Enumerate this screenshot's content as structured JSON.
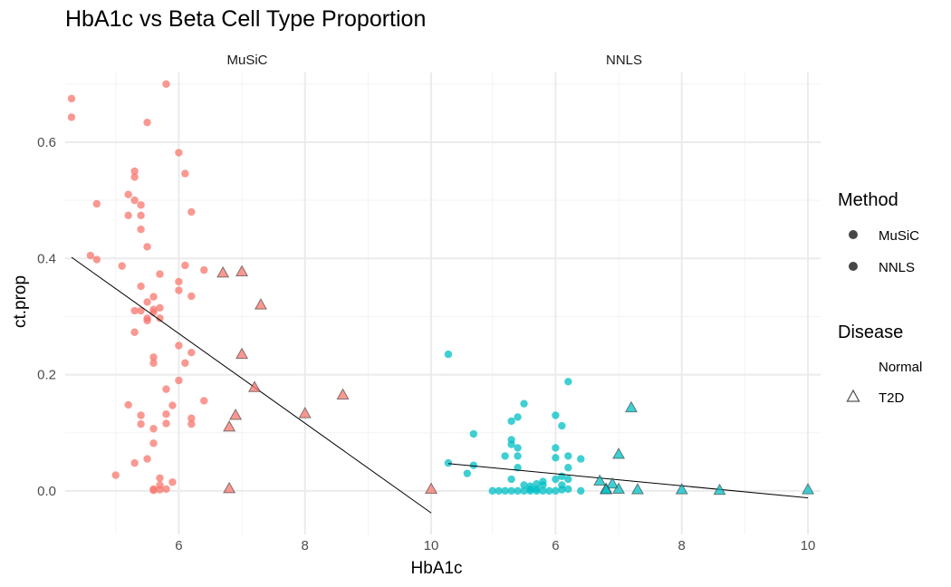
{
  "chart_data": {
    "type": "scatter",
    "title": "HbA1c vs Beta Cell Type Proportion",
    "xlabel": "HbA1c",
    "ylabel": "ct.prop",
    "xlim": [
      4.2,
      10.2
    ],
    "ylim": [
      -0.075,
      0.72
    ],
    "x_ticks": [
      "6",
      "8",
      "10"
    ],
    "y_ticks": [
      "0.0",
      "0.2",
      "0.4",
      "0.6"
    ],
    "grid": true,
    "colors": {
      "MuSiC": "#F8766D",
      "NNLS": "#00BFC4",
      "grid_major": "#ebebeb",
      "grid_minor": "#f3f3f3"
    },
    "legend": {
      "method_title": "Method",
      "method_items": [
        "MuSiC",
        "NNLS"
      ],
      "disease_title": "Disease",
      "disease_items": [
        "Normal",
        "T2D"
      ],
      "position": "right"
    },
    "panels": [
      {
        "name": "MuSiC",
        "fit_line": [
          [
            4.3,
            0.402
          ],
          [
            10.0,
            -0.038
          ]
        ],
        "normal": [
          [
            4.3,
            0.675
          ],
          [
            4.3,
            0.643
          ],
          [
            4.6,
            0.405
          ],
          [
            4.7,
            0.494
          ],
          [
            4.7,
            0.398
          ],
          [
            5.0,
            0.027
          ],
          [
            5.1,
            0.387
          ],
          [
            5.2,
            0.51
          ],
          [
            5.2,
            0.474
          ],
          [
            5.2,
            0.148
          ],
          [
            5.3,
            0.55
          ],
          [
            5.3,
            0.54
          ],
          [
            5.3,
            0.5
          ],
          [
            5.3,
            0.31
          ],
          [
            5.3,
            0.273
          ],
          [
            5.3,
            0.048
          ],
          [
            5.4,
            0.492
          ],
          [
            5.4,
            0.474
          ],
          [
            5.4,
            0.45
          ],
          [
            5.4,
            0.352
          ],
          [
            5.4,
            0.31
          ],
          [
            5.4,
            0.13
          ],
          [
            5.4,
            0.115
          ],
          [
            5.5,
            0.634
          ],
          [
            5.5,
            0.42
          ],
          [
            5.5,
            0.325
          ],
          [
            5.5,
            0.297
          ],
          [
            5.5,
            0.293
          ],
          [
            5.5,
            0.055
          ],
          [
            5.6,
            0.334
          ],
          [
            5.6,
            0.312
          ],
          [
            5.6,
            0.307
          ],
          [
            5.6,
            0.23
          ],
          [
            5.6,
            0.22
          ],
          [
            5.6,
            0.107
          ],
          [
            5.6,
            0.082
          ],
          [
            5.6,
            0.003
          ],
          [
            5.6,
            0.001
          ],
          [
            5.7,
            0.373
          ],
          [
            5.7,
            0.315
          ],
          [
            5.7,
            0.297
          ],
          [
            5.7,
            0.002
          ],
          [
            5.7,
            0.022
          ],
          [
            5.7,
            0.01
          ],
          [
            5.8,
            0.7
          ],
          [
            5.8,
            0.175
          ],
          [
            5.8,
            0.132
          ],
          [
            5.8,
            0.116
          ],
          [
            5.8,
            0.003
          ],
          [
            5.9,
            0.147
          ],
          [
            5.9,
            0.015
          ],
          [
            6.0,
            0.582
          ],
          [
            6.0,
            0.36
          ],
          [
            6.0,
            0.345
          ],
          [
            6.0,
            0.25
          ],
          [
            6.0,
            0.19
          ],
          [
            6.1,
            0.546
          ],
          [
            6.1,
            0.388
          ],
          [
            6.1,
            0.22
          ],
          [
            6.2,
            0.48
          ],
          [
            6.2,
            0.335
          ],
          [
            6.2,
            0.238
          ],
          [
            6.2,
            0.125
          ],
          [
            6.2,
            0.115
          ],
          [
            6.4,
            0.38
          ],
          [
            6.4,
            0.155
          ]
        ],
        "t2d": [
          [
            6.7,
            0.375
          ],
          [
            7.0,
            0.377
          ],
          [
            7.3,
            0.32
          ],
          [
            7.0,
            0.235
          ],
          [
            7.2,
            0.178
          ],
          [
            6.9,
            0.13
          ],
          [
            6.8,
            0.11
          ],
          [
            8.0,
            0.133
          ],
          [
            8.6,
            0.165
          ],
          [
            6.8,
            0.004
          ],
          [
            10.0,
            0.003
          ]
        ]
      },
      {
        "name": "NNLS",
        "fit_line": [
          [
            4.3,
            0.047
          ],
          [
            10.0,
            -0.012
          ]
        ],
        "normal": [
          [
            4.3,
            0.235
          ],
          [
            4.3,
            0.048
          ],
          [
            4.6,
            0.03
          ],
          [
            4.7,
            0.098
          ],
          [
            4.7,
            0.044
          ],
          [
            5.0,
            0.0
          ],
          [
            5.1,
            0.0
          ],
          [
            5.2,
            0.06
          ],
          [
            5.2,
            0.0
          ],
          [
            5.3,
            0.08
          ],
          [
            5.3,
            0.088
          ],
          [
            5.3,
            0.12
          ],
          [
            5.3,
            0.0
          ],
          [
            5.3,
            0.02
          ],
          [
            5.4,
            0.127
          ],
          [
            5.4,
            0.074
          ],
          [
            5.4,
            0.06
          ],
          [
            5.4,
            0.04
          ],
          [
            5.4,
            0.0
          ],
          [
            5.5,
            0.15
          ],
          [
            5.5,
            0.0
          ],
          [
            5.5,
            0.01
          ],
          [
            5.6,
            0.0
          ],
          [
            5.6,
            0.003
          ],
          [
            5.6,
            0.008
          ],
          [
            5.7,
            0.0
          ],
          [
            5.7,
            0.012
          ],
          [
            5.7,
            0.003
          ],
          [
            5.8,
            0.0
          ],
          [
            5.8,
            0.01
          ],
          [
            5.8,
            0.016
          ],
          [
            5.9,
            0.0
          ],
          [
            6.0,
            0.13
          ],
          [
            6.0,
            0.074
          ],
          [
            6.0,
            0.057
          ],
          [
            6.0,
            0.02
          ],
          [
            6.0,
            0.0
          ],
          [
            6.1,
            0.112
          ],
          [
            6.1,
            0.025
          ],
          [
            6.1,
            0.01
          ],
          [
            6.1,
            0.002
          ],
          [
            6.2,
            0.188
          ],
          [
            6.2,
            0.06
          ],
          [
            6.2,
            0.04
          ],
          [
            6.2,
            0.02
          ],
          [
            6.2,
            0.003
          ],
          [
            6.4,
            0.055
          ],
          [
            6.4,
            0.0
          ]
        ],
        "t2d": [
          [
            6.7,
            0.017
          ],
          [
            7.2,
            0.143
          ],
          [
            7.0,
            0.063
          ],
          [
            6.9,
            0.012
          ],
          [
            6.8,
            0.003
          ],
          [
            7.0,
            0.003
          ],
          [
            7.3,
            0.002
          ],
          [
            8.0,
            0.002
          ],
          [
            8.6,
            0.001
          ],
          [
            6.8,
            0.002
          ],
          [
            10.0,
            0.002
          ]
        ]
      }
    ]
  }
}
